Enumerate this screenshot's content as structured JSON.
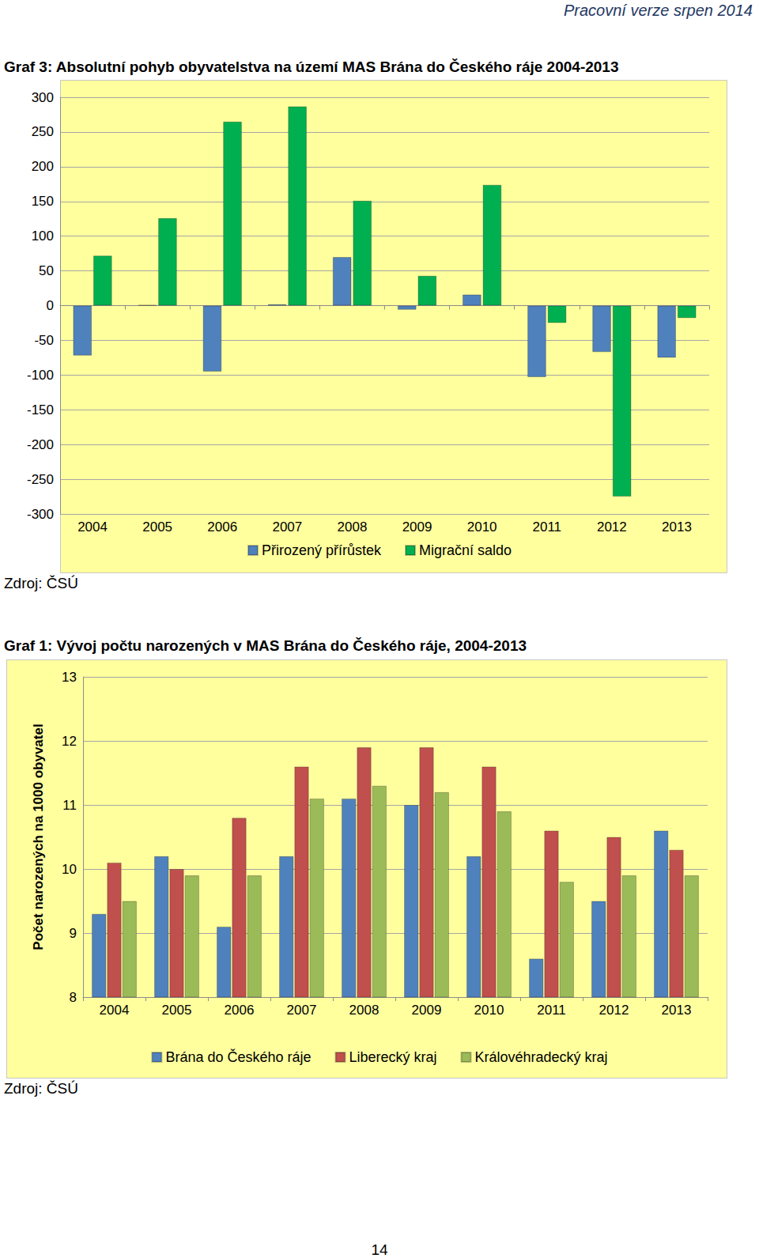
{
  "header": "Pracovní verze srpen 2014",
  "page_number": "14",
  "chart_data": [
    {
      "type": "bar",
      "title": "Graf 3: Absolutní pohyb obyvatelstva na území MAS Brána do Českého ráje 2004-2013",
      "annotations": [
        "Zdroj: ČSÚ"
      ],
      "categories": [
        "2004",
        "2005",
        "2006",
        "2007",
        "2008",
        "2009",
        "2010",
        "2011",
        "2012",
        "2013"
      ],
      "series": [
        {
          "name": "Přirozený přírůstek",
          "color": "#4f81bd",
          "values": [
            -72,
            1,
            -95,
            2,
            70,
            -6,
            16,
            -103,
            -67,
            -75
          ]
        },
        {
          "name": "Migrační saldo",
          "color": "#00b050",
          "values": [
            72,
            126,
            265,
            287,
            151,
            43,
            174,
            -25,
            -275,
            -18
          ]
        }
      ],
      "ylim": [
        -300,
        300
      ],
      "yticks": [
        -300,
        -250,
        -200,
        -150,
        -100,
        -50,
        0,
        50,
        100,
        150,
        200,
        250,
        300
      ],
      "grid": true,
      "legend": "bottom"
    },
    {
      "type": "bar",
      "title": "Graf 1: Vývoj počtu narozených v MAS Brána do Českého ráje, 2004-2013",
      "annotations": [
        "Zdroj: ČSÚ"
      ],
      "ylabel": "Počet narozených na 1000 obyvatel",
      "categories": [
        "2004",
        "2005",
        "2006",
        "2007",
        "2008",
        "2009",
        "2010",
        "2011",
        "2012",
        "2013"
      ],
      "series": [
        {
          "name": "Brána do Českého ráje",
          "color": "#4f81bd",
          "values": [
            9.3,
            10.2,
            9.1,
            10.2,
            11.1,
            11.0,
            10.2,
            8.6,
            9.5,
            10.6
          ]
        },
        {
          "name": "Liberecký kraj",
          "color": "#c0504d",
          "values": [
            10.1,
            10.0,
            10.8,
            11.6,
            11.9,
            11.9,
            11.6,
            10.6,
            10.5,
            10.3
          ]
        },
        {
          "name": "Královéhradecký kraj",
          "color": "#9bbb59",
          "values": [
            9.5,
            9.9,
            9.9,
            11.1,
            11.3,
            11.2,
            10.9,
            9.8,
            9.9,
            9.9
          ]
        }
      ],
      "ylim": [
        8,
        13
      ],
      "yticks": [
        8,
        9,
        10,
        11,
        12,
        13
      ],
      "grid": true,
      "legend": "bottom"
    }
  ]
}
